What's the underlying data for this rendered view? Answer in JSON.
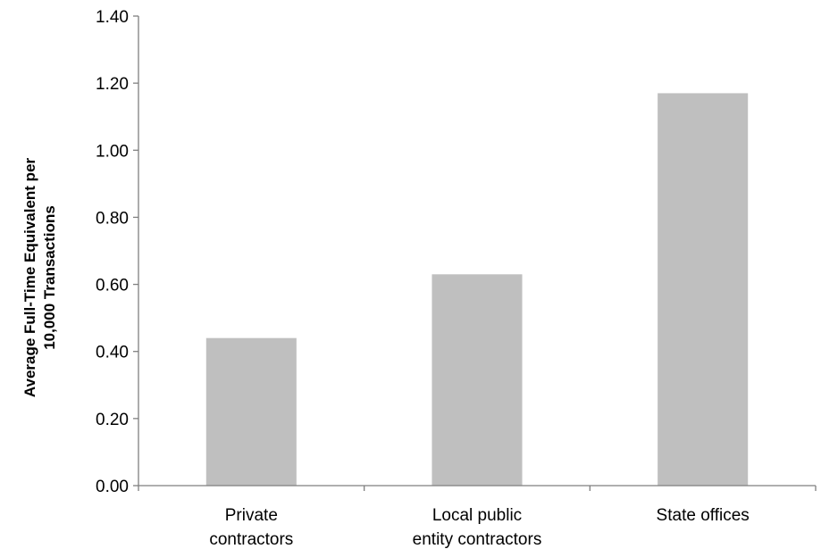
{
  "chart_data": {
    "type": "bar",
    "title": "",
    "xlabel": "",
    "ylabel_lines": [
      "Average Full-Time Equivalent per",
      "10,000 Transactions"
    ],
    "categories": [
      [
        "Private",
        "contractors"
      ],
      [
        "Local public",
        "entity contractors"
      ],
      [
        "State offices"
      ]
    ],
    "values": [
      0.44,
      0.63,
      1.17
    ],
    "ylim": [
      0,
      1.4
    ],
    "yticks": [
      0,
      0.2,
      0.4,
      0.6,
      0.8,
      1.0,
      1.2,
      1.4
    ],
    "ytick_labels": [
      "0.00",
      "0.20",
      "0.40",
      "0.60",
      "0.80",
      "1.00",
      "1.20",
      "1.40"
    ],
    "grid": false,
    "legend": "none",
    "bar_color": "#bfbfbf",
    "axis_color": "#7f7f7f"
  }
}
